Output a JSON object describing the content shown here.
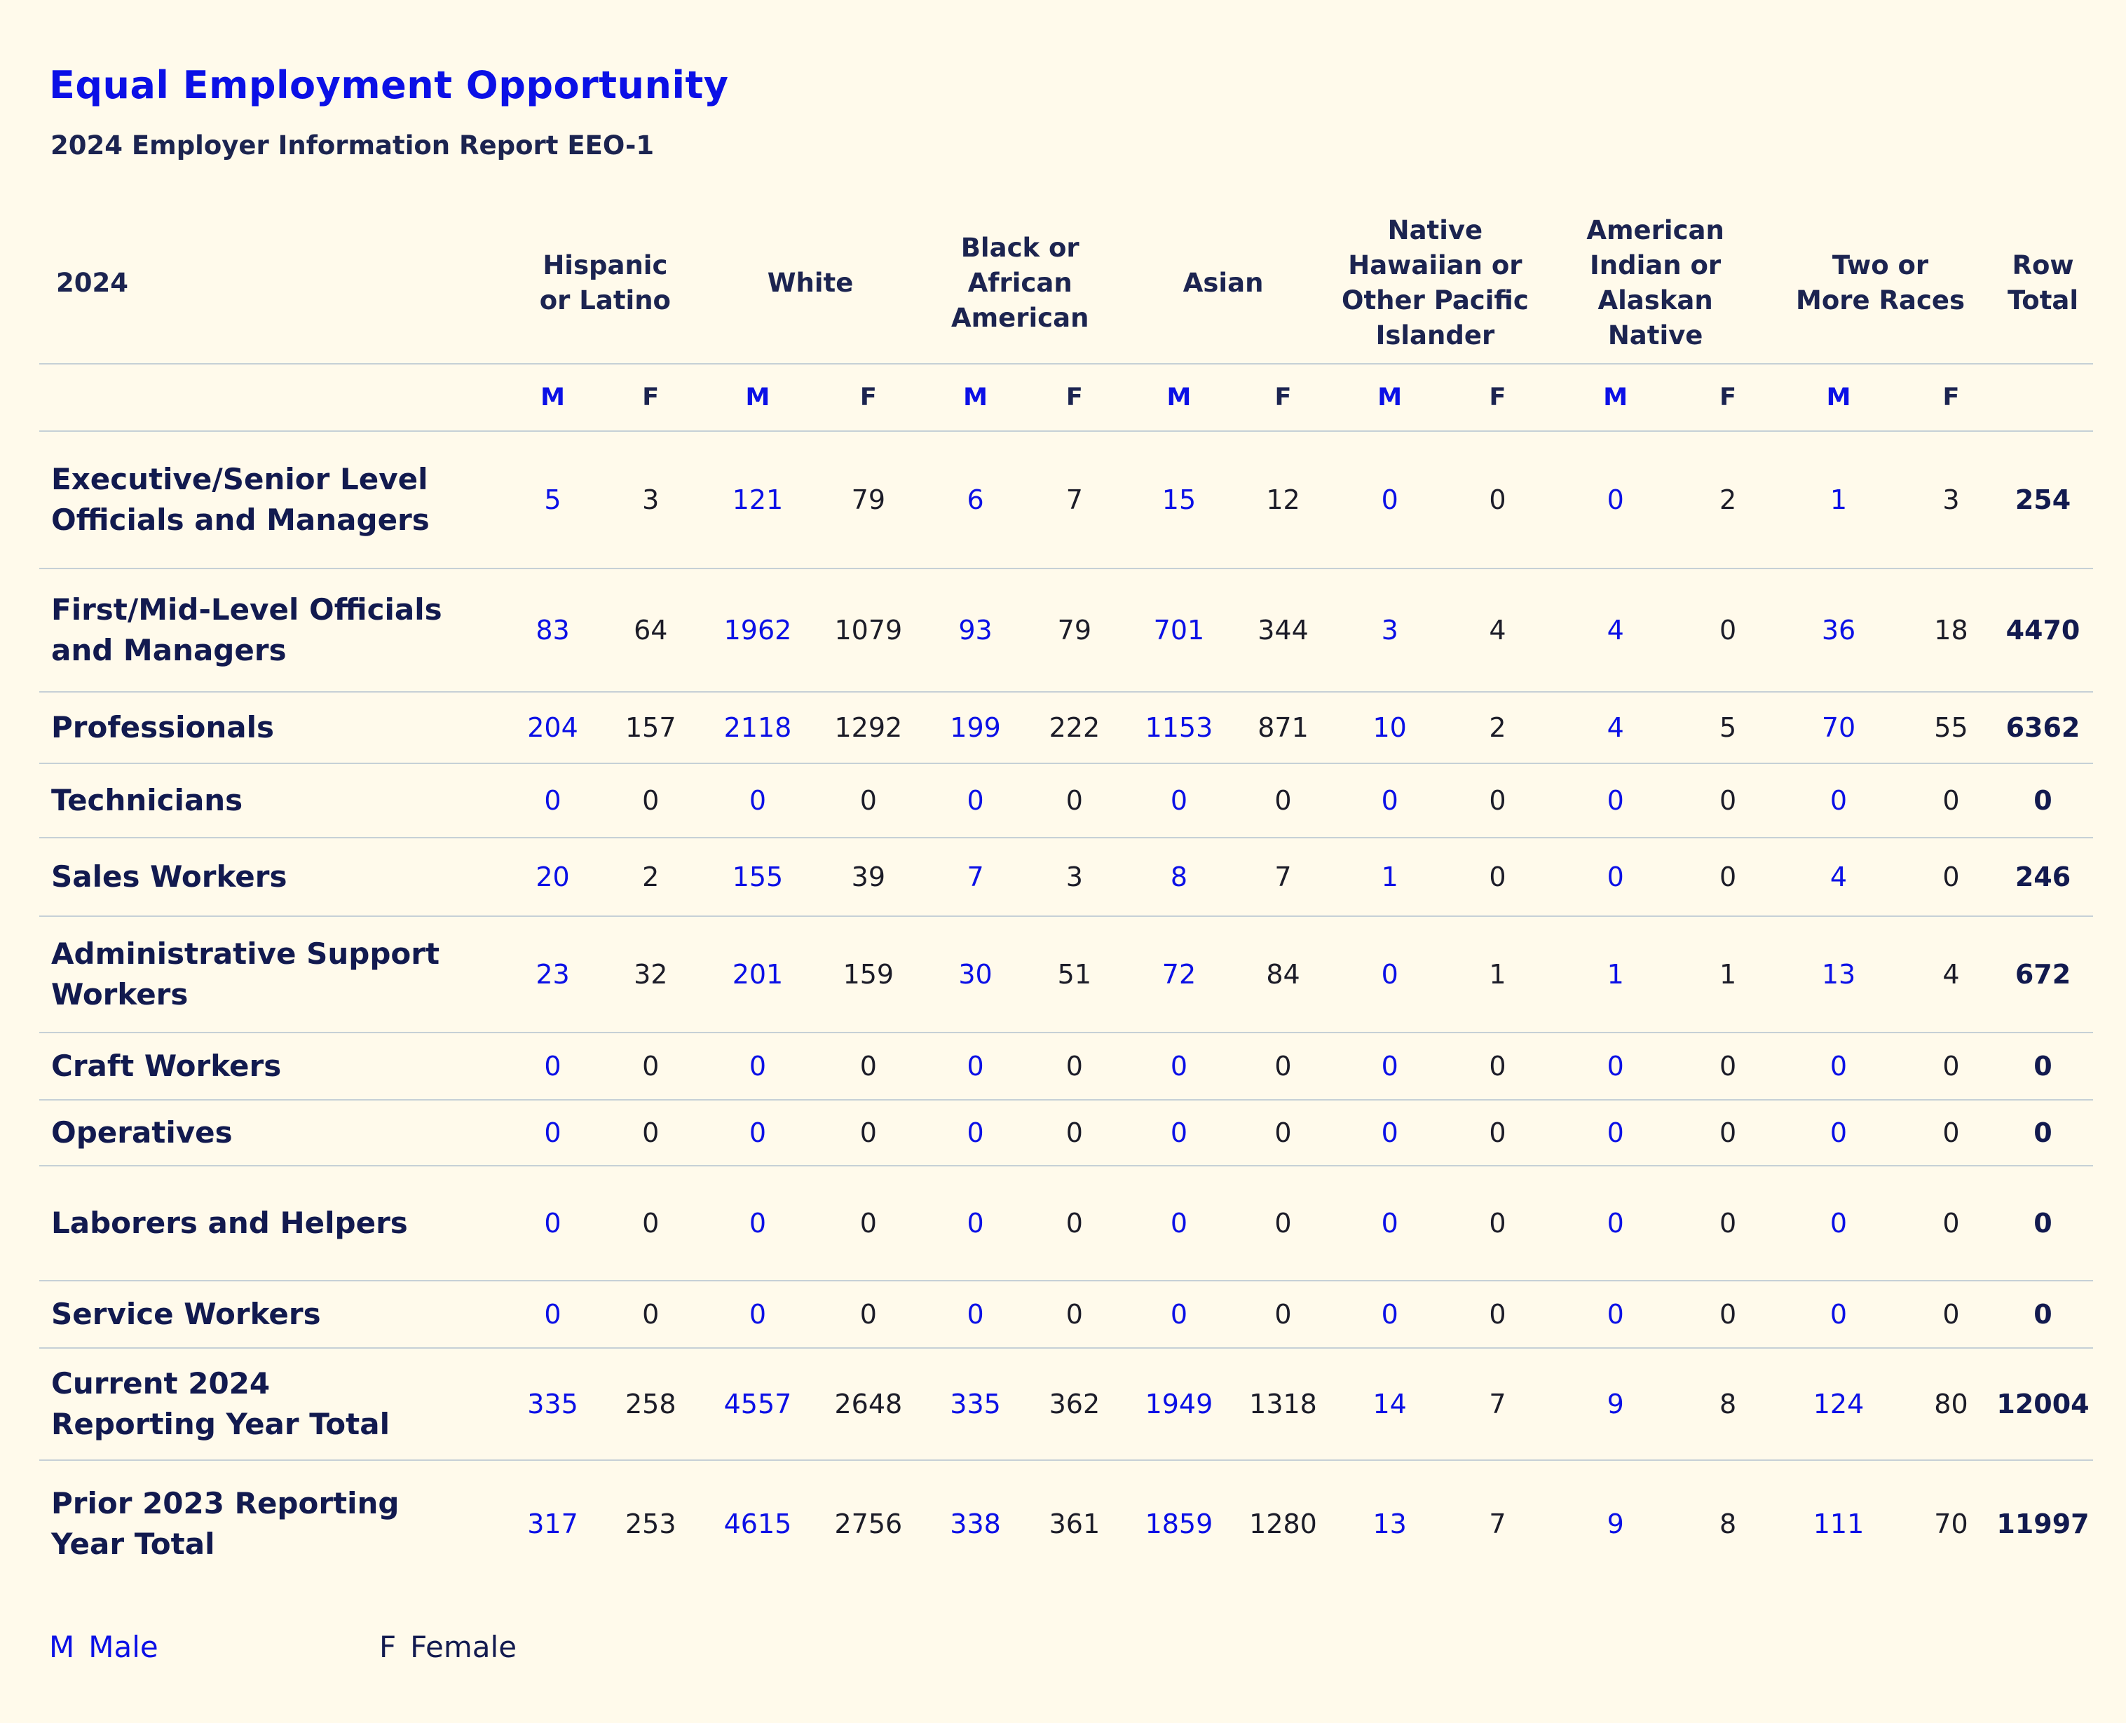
{
  "title": "Equal Employment Opportunity",
  "subtitle": "2024 Employer Information Report EEO-1",
  "table": {
    "year_header": "2024",
    "groups": [
      "Hispanic or  Latino",
      "White",
      "Black or African American",
      "Asian",
      "Native Hawaiian or Other Pacific Islander",
      "American Indian or Alaskan Native",
      "Two or More Races"
    ],
    "total_header": "Row Total",
    "male_code": "M",
    "female_code": "F",
    "rows": [
      {
        "label": "Executive/Senior Level Officials and Managers",
        "values": [
          "5",
          "3",
          "121",
          "79",
          "6",
          "7",
          "15",
          "12",
          "0",
          "0",
          "0",
          "2",
          "1",
          "3"
        ],
        "total": "254"
      },
      {
        "label": "First/Mid-Level Officials and Managers",
        "values": [
          "83",
          "64",
          "1962",
          "1079",
          "93",
          "79",
          "701",
          "344",
          "3",
          "4",
          "4",
          "0",
          "36",
          "18"
        ],
        "total": "4470"
      },
      {
        "label": "Professionals",
        "values": [
          "204",
          "157",
          "2118",
          "1292",
          "199",
          "222",
          "1153",
          "871",
          "10",
          "2",
          "4",
          "5",
          "70",
          "55"
        ],
        "total": "6362"
      },
      {
        "label": "Technicians",
        "values": [
          "0",
          "0",
          "0",
          "0",
          "0",
          "0",
          "0",
          "0",
          "0",
          "0",
          "0",
          "0",
          "0",
          "0"
        ],
        "total": "0"
      },
      {
        "label": "Sales Workers",
        "values": [
          "20",
          "2",
          "155",
          "39",
          "7",
          "3",
          "8",
          "7",
          "1",
          "0",
          "0",
          "0",
          "4",
          "0"
        ],
        "total": "246"
      },
      {
        "label": "Administrative Support Workers",
        "values": [
          "23",
          "32",
          "201",
          "159",
          "30",
          "51",
          "72",
          "84",
          "0",
          "1",
          "1",
          "1",
          "13",
          "4"
        ],
        "total": "672"
      },
      {
        "label": "Craft Workers",
        "values": [
          "0",
          "0",
          "0",
          "0",
          "0",
          "0",
          "0",
          "0",
          "0",
          "0",
          "0",
          "0",
          "0",
          "0"
        ],
        "total": "0"
      },
      {
        "label": "Operatives",
        "values": [
          "0",
          "0",
          "0",
          "0",
          "0",
          "0",
          "0",
          "0",
          "0",
          "0",
          "0",
          "0",
          "0",
          "0"
        ],
        "total": "0"
      },
      {
        "label": "Laborers and Helpers",
        "values": [
          "0",
          "0",
          "0",
          "0",
          "0",
          "0",
          "0",
          "0",
          "0",
          "0",
          "0",
          "0",
          "0",
          "0"
        ],
        "total": "0"
      },
      {
        "label": "Service Workers",
        "values": [
          "0",
          "0",
          "0",
          "0",
          "0",
          "0",
          "0",
          "0",
          "0",
          "0",
          "0",
          "0",
          "0",
          "0"
        ],
        "total": "0"
      },
      {
        "label": "Current 2024 Reporting Year Total",
        "values": [
          "335",
          "258",
          "4557",
          "2648",
          "335",
          "362",
          "1949",
          "1318",
          "14",
          "7",
          "9",
          "8",
          "124",
          "80"
        ],
        "total": "12004"
      },
      {
        "label": "Prior 2023 Reporting Year Total",
        "values": [
          "317",
          "253",
          "4615",
          "2756",
          "338",
          "361",
          "1859",
          "1280",
          "13",
          "7",
          "9",
          "8",
          "111",
          "70"
        ],
        "total": "11997"
      }
    ]
  },
  "legend": {
    "male_code": "M",
    "male_label": "Male",
    "female_code": "F",
    "female_label": "Female"
  },
  "colors": {
    "background": "#fffaeb",
    "male_accent": "#0b10e6",
    "text_dark": "#121a4f",
    "rule": "#c6d0d6"
  }
}
